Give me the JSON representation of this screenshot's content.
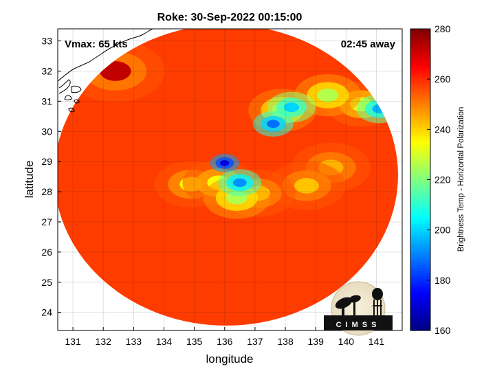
{
  "chart_data": {
    "type": "heatmap",
    "title": "Roke: 30-Sep-2022 00:15:00",
    "xlabel": "longitude",
    "ylabel": "latitude",
    "xlim": [
      130.5,
      141.85
    ],
    "ylim": [
      23.4,
      33.4
    ],
    "x_ticks": [
      131,
      132,
      133,
      134,
      135,
      136,
      137,
      138,
      139,
      140,
      141
    ],
    "y_ticks": [
      24,
      25,
      26,
      27,
      28,
      29,
      30,
      31,
      32,
      33
    ],
    "grid": true,
    "annotations": {
      "vmax": "Vmax: 65 kts",
      "offset": "02:45 away"
    },
    "colorbar": {
      "label": "Brightness Temp - Horizontal Polarization",
      "range": [
        160,
        280
      ],
      "ticks": [
        160,
        180,
        200,
        220,
        240,
        260,
        280
      ],
      "colormap": "jet"
    },
    "swath": {
      "center_lon": 136.05,
      "center_lat": 28.55,
      "background_value": 258
    },
    "features": [
      {
        "lon": 136.0,
        "lat": 28.95,
        "value": 172
      },
      {
        "lon": 136.5,
        "lat": 28.3,
        "value": 192
      },
      {
        "lon": 137.6,
        "lat": 30.25,
        "value": 188
      },
      {
        "lon": 138.2,
        "lat": 30.8,
        "value": 200
      },
      {
        "lon": 141.1,
        "lat": 30.75,
        "value": 196
      },
      {
        "lon": 137.9,
        "lat": 30.7,
        "value": 228
      },
      {
        "lon": 139.4,
        "lat": 31.2,
        "value": 226
      },
      {
        "lon": 140.5,
        "lat": 30.9,
        "value": 232
      },
      {
        "lon": 136.4,
        "lat": 27.8,
        "value": 226
      },
      {
        "lon": 135.8,
        "lat": 28.3,
        "value": 234
      },
      {
        "lon": 134.9,
        "lat": 28.25,
        "value": 236
      },
      {
        "lon": 137.1,
        "lat": 27.95,
        "value": 238
      },
      {
        "lon": 138.7,
        "lat": 28.2,
        "value": 242
      },
      {
        "lon": 139.5,
        "lat": 28.8,
        "value": 244
      },
      {
        "lon": 132.4,
        "lat": 32.0,
        "value": 272
      }
    ],
    "logo_text": "CIMSS"
  }
}
